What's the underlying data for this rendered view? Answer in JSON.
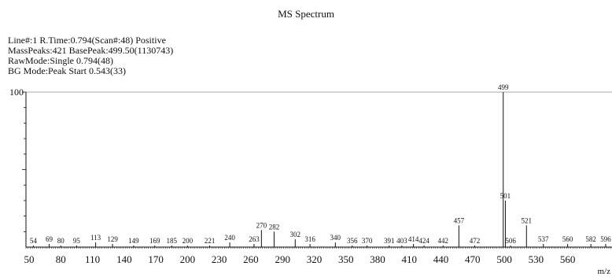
{
  "header": {
    "title": "MS Spectrum",
    "meta": [
      "Line#:1   R.Time:0.794(Scan#:48)  Positive",
      "MassPeaks:421   BasePeak:499.50(1130743)",
      "RawMode:Single 0.794(48)",
      "BG Mode:Peak Start 0.543(33)"
    ]
  },
  "chart_data": {
    "type": "bar",
    "title": "MS Spectrum",
    "xlabel": "m/z",
    "ylabel": "",
    "xlim": [
      47,
      602
    ],
    "ylim": [
      0,
      100
    ],
    "x_ticks": [
      50,
      80,
      110,
      140,
      170,
      200,
      230,
      260,
      290,
      320,
      350,
      380,
      410,
      440,
      470,
      500,
      530,
      560
    ],
    "y_ticks": [
      100
    ],
    "peaks": [
      {
        "mz": 54,
        "label": "54",
        "intensity": 1
      },
      {
        "mz": 69,
        "label": "69",
        "intensity": 2
      },
      {
        "mz": 80,
        "label": "80",
        "intensity": 1
      },
      {
        "mz": 95,
        "label": "95",
        "intensity": 1
      },
      {
        "mz": 113,
        "label": "113",
        "intensity": 3
      },
      {
        "mz": 129,
        "label": "129",
        "intensity": 2
      },
      {
        "mz": 149,
        "label": "149",
        "intensity": 1
      },
      {
        "mz": 169,
        "label": "169",
        "intensity": 1
      },
      {
        "mz": 185,
        "label": "185",
        "intensity": 1
      },
      {
        "mz": 200,
        "label": "200",
        "intensity": 1
      },
      {
        "mz": 221,
        "label": "221",
        "intensity": 1
      },
      {
        "mz": 240,
        "label": "240",
        "intensity": 3
      },
      {
        "mz": 263,
        "label": "263",
        "intensity": 2
      },
      {
        "mz": 270,
        "label": "270",
        "intensity": 11
      },
      {
        "mz": 282,
        "label": "282",
        "intensity": 10
      },
      {
        "mz": 302,
        "label": "302",
        "intensity": 5
      },
      {
        "mz": 316,
        "label": "316",
        "intensity": 2
      },
      {
        "mz": 340,
        "label": "340",
        "intensity": 3
      },
      {
        "mz": 356,
        "label": "356",
        "intensity": 1
      },
      {
        "mz": 370,
        "label": "370",
        "intensity": 1
      },
      {
        "mz": 391,
        "label": "391",
        "intensity": 1
      },
      {
        "mz": 403,
        "label": "403",
        "intensity": 1
      },
      {
        "mz": 414,
        "label": "414",
        "intensity": 2
      },
      {
        "mz": 424,
        "label": "424",
        "intensity": 1
      },
      {
        "mz": 442,
        "label": "442",
        "intensity": 1
      },
      {
        "mz": 457,
        "label": "457",
        "intensity": 14
      },
      {
        "mz": 472,
        "label": "472",
        "intensity": 1
      },
      {
        "mz": 499,
        "label": "499",
        "intensity": 100
      },
      {
        "mz": 501,
        "label": "501",
        "intensity": 30
      },
      {
        "mz": 506,
        "label": "506",
        "intensity": 1
      },
      {
        "mz": 521,
        "label": "521",
        "intensity": 14
      },
      {
        "mz": 537,
        "label": "537",
        "intensity": 2
      },
      {
        "mz": 560,
        "label": "560",
        "intensity": 2
      },
      {
        "mz": 582,
        "label": "582",
        "intensity": 2
      },
      {
        "mz": 596,
        "label": "596",
        "intensity": 2
      }
    ],
    "grid": false
  }
}
